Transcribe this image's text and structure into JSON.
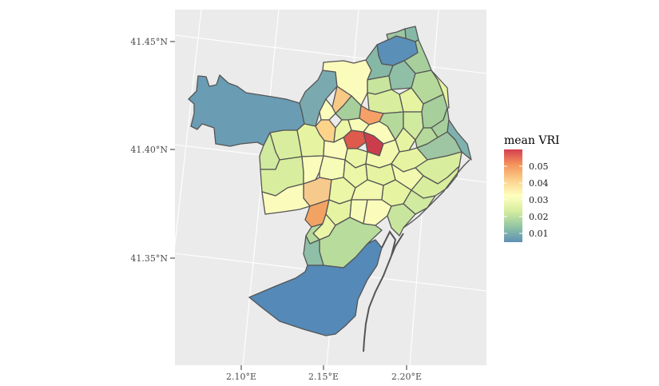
{
  "chart_data": {
    "type": "choropleth",
    "x_ticks": [
      "2.10°E",
      "2.15°E",
      "2.20°E"
    ],
    "y_ticks": [
      "41.45°N",
      "41.40°N",
      "41.35°N"
    ],
    "legend": {
      "title": "mean VRI",
      "labels": [
        "0.05",
        "0.04",
        "0.03",
        "0.02",
        "0.01"
      ],
      "min": 0.006,
      "max": 0.058,
      "colors": [
        "#5e90b6",
        "#8fc3a4",
        "#d4ec9e",
        "#ffffbf",
        "#fbd08c",
        "#f4935b",
        "#d53e4f"
      ]
    },
    "panel_background": "#ebebeb",
    "grid_color": "#ffffff",
    "outline_color": "#555555"
  }
}
